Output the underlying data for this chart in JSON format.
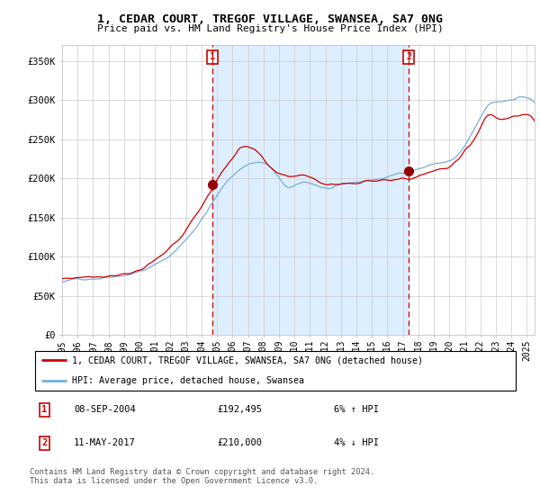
{
  "title": "1, CEDAR COURT, TREGOF VILLAGE, SWANSEA, SA7 0NG",
  "subtitle": "Price paid vs. HM Land Registry's House Price Index (HPI)",
  "ylim": [
    0,
    370000
  ],
  "yticks": [
    0,
    50000,
    100000,
    150000,
    200000,
    250000,
    300000,
    350000
  ],
  "ytick_labels": [
    "£0",
    "£50K",
    "£100K",
    "£150K",
    "£200K",
    "£250K",
    "£300K",
    "£350K"
  ],
  "sale1_date": 2004.69,
  "sale1_price": 192495,
  "sale1_label": "1",
  "sale1_date_str": "08-SEP-2004",
  "sale1_price_str": "£192,495",
  "sale1_hpi_str": "6% ↑ HPI",
  "sale2_date": 2017.37,
  "sale2_price": 210000,
  "sale2_label": "2",
  "sale2_date_str": "11-MAY-2017",
  "sale2_price_str": "£210,000",
  "sale2_hpi_str": "4% ↓ HPI",
  "legend_line1": "1, CEDAR COURT, TREGOF VILLAGE, SWANSEA, SA7 0NG (detached house)",
  "legend_line2": "HPI: Average price, detached house, Swansea",
  "footer": "Contains HM Land Registry data © Crown copyright and database right 2024.\nThis data is licensed under the Open Government Licence v3.0.",
  "line_color_red": "#cc0000",
  "line_color_blue": "#7aaddb",
  "vline_color": "#cc0000",
  "dot_color": "#990000",
  "box_color": "#cc0000",
  "grid_color": "#cccccc",
  "highlight_bg": "#ddeeff",
  "x_start": 1995.0,
  "x_end": 2025.5,
  "xtick_years": [
    1995,
    1996,
    1997,
    1998,
    1999,
    2000,
    2001,
    2002,
    2003,
    2004,
    2005,
    2006,
    2007,
    2008,
    2009,
    2010,
    2011,
    2012,
    2013,
    2014,
    2015,
    2016,
    2017,
    2018,
    2019,
    2020,
    2021,
    2022,
    2023,
    2024,
    2025
  ]
}
